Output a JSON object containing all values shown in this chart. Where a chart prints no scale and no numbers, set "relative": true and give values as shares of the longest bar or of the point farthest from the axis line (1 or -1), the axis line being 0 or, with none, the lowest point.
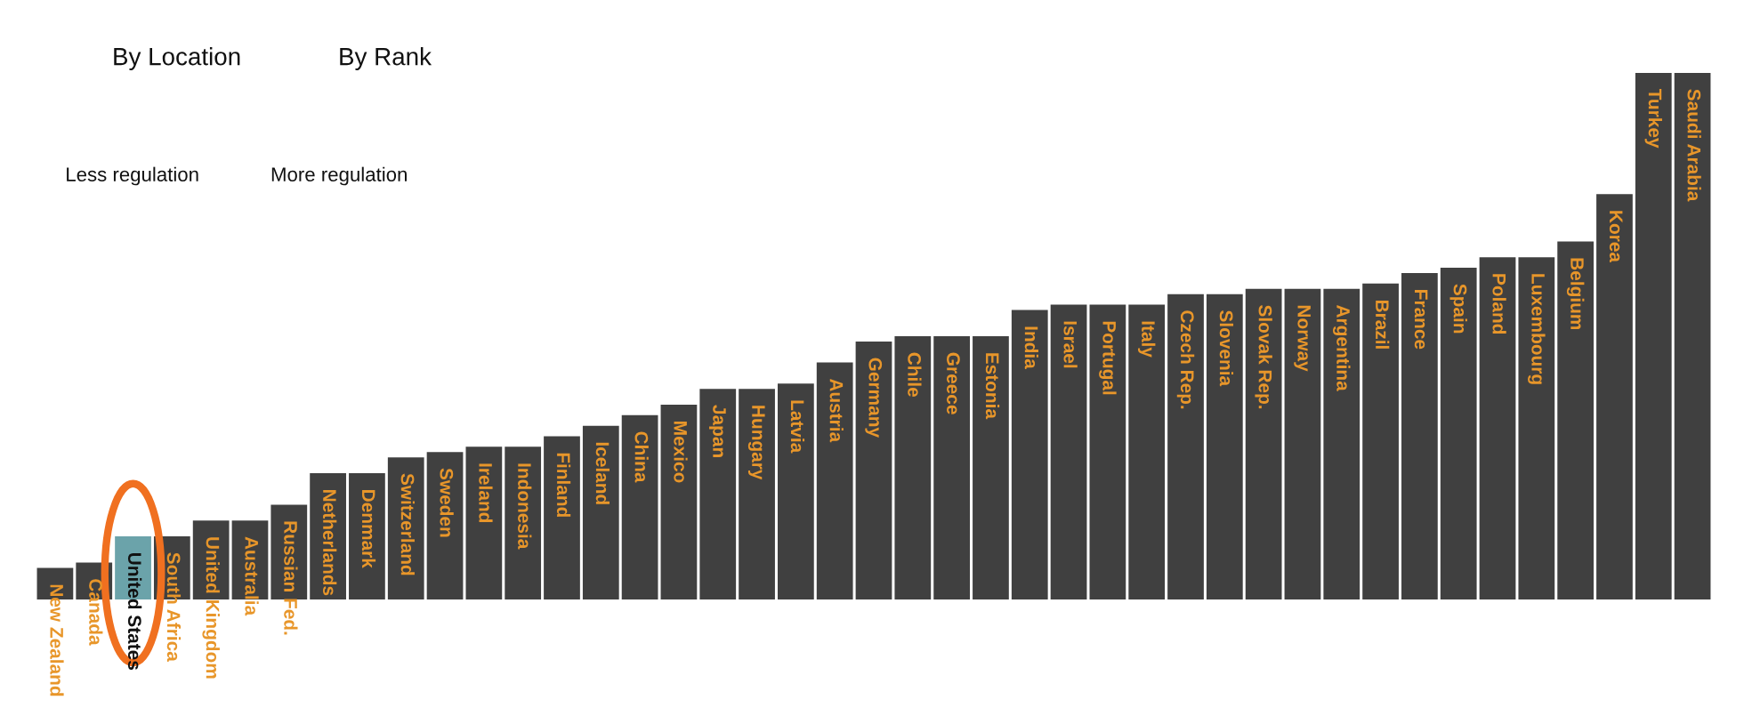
{
  "chart_data": {
    "type": "bar",
    "relative": true,
    "categories": [
      "New Zealand",
      "Canada",
      "United States",
      "South Africa",
      "United Kingdom",
      "Australia",
      "Russian Fed.",
      "Netherlands",
      "Denmark",
      "Switzerland",
      "Sweden",
      "Ireland",
      "Indonesia",
      "Finland",
      "Iceland",
      "China",
      "Mexico",
      "Japan",
      "Hungary",
      "Latvia",
      "Austria",
      "Germany",
      "Chile",
      "Greece",
      "Estonia",
      "India",
      "Israel",
      "Portugal",
      "Italy",
      "Czech Rep.",
      "Slovenia",
      "Slovak Rep.",
      "Norway",
      "Argentina",
      "Brazil",
      "France",
      "Spain",
      "Poland",
      "Luxembourg",
      "Belgium",
      "Korea",
      "Turkey",
      "Saudi Arabia"
    ],
    "values": [
      0.06,
      0.07,
      0.12,
      0.12,
      0.15,
      0.15,
      0.18,
      0.24,
      0.24,
      0.27,
      0.28,
      0.29,
      0.29,
      0.31,
      0.33,
      0.35,
      0.37,
      0.4,
      0.4,
      0.41,
      0.45,
      0.49,
      0.5,
      0.5,
      0.5,
      0.55,
      0.56,
      0.56,
      0.56,
      0.58,
      0.58,
      0.59,
      0.59,
      0.59,
      0.6,
      0.62,
      0.63,
      0.65,
      0.65,
      0.68,
      0.77,
      1,
      1
    ],
    "colors": [
      "#404040",
      "#404040",
      "#6ba3aa",
      "#404040",
      "#404040",
      "#404040",
      "#404040",
      "#404040",
      "#404040",
      "#404040",
      "#404040",
      "#404040",
      "#404040",
      "#404040",
      "#404040",
      "#404040",
      "#404040",
      "#404040",
      "#404040",
      "#404040",
      "#404040",
      "#404040",
      "#404040",
      "#404040",
      "#404040",
      "#404040",
      "#404040",
      "#404040",
      "#404040",
      "#404040",
      "#404040",
      "#404040",
      "#404040",
      "#404040",
      "#404040",
      "#404040",
      "#404040",
      "#404040",
      "#404040",
      "#404040",
      "#404040",
      "#404040",
      "#404040"
    ],
    "annotations": [
      "By Location",
      "By Rank",
      "Less regulation",
      "More regulation"
    ]
  }
}
